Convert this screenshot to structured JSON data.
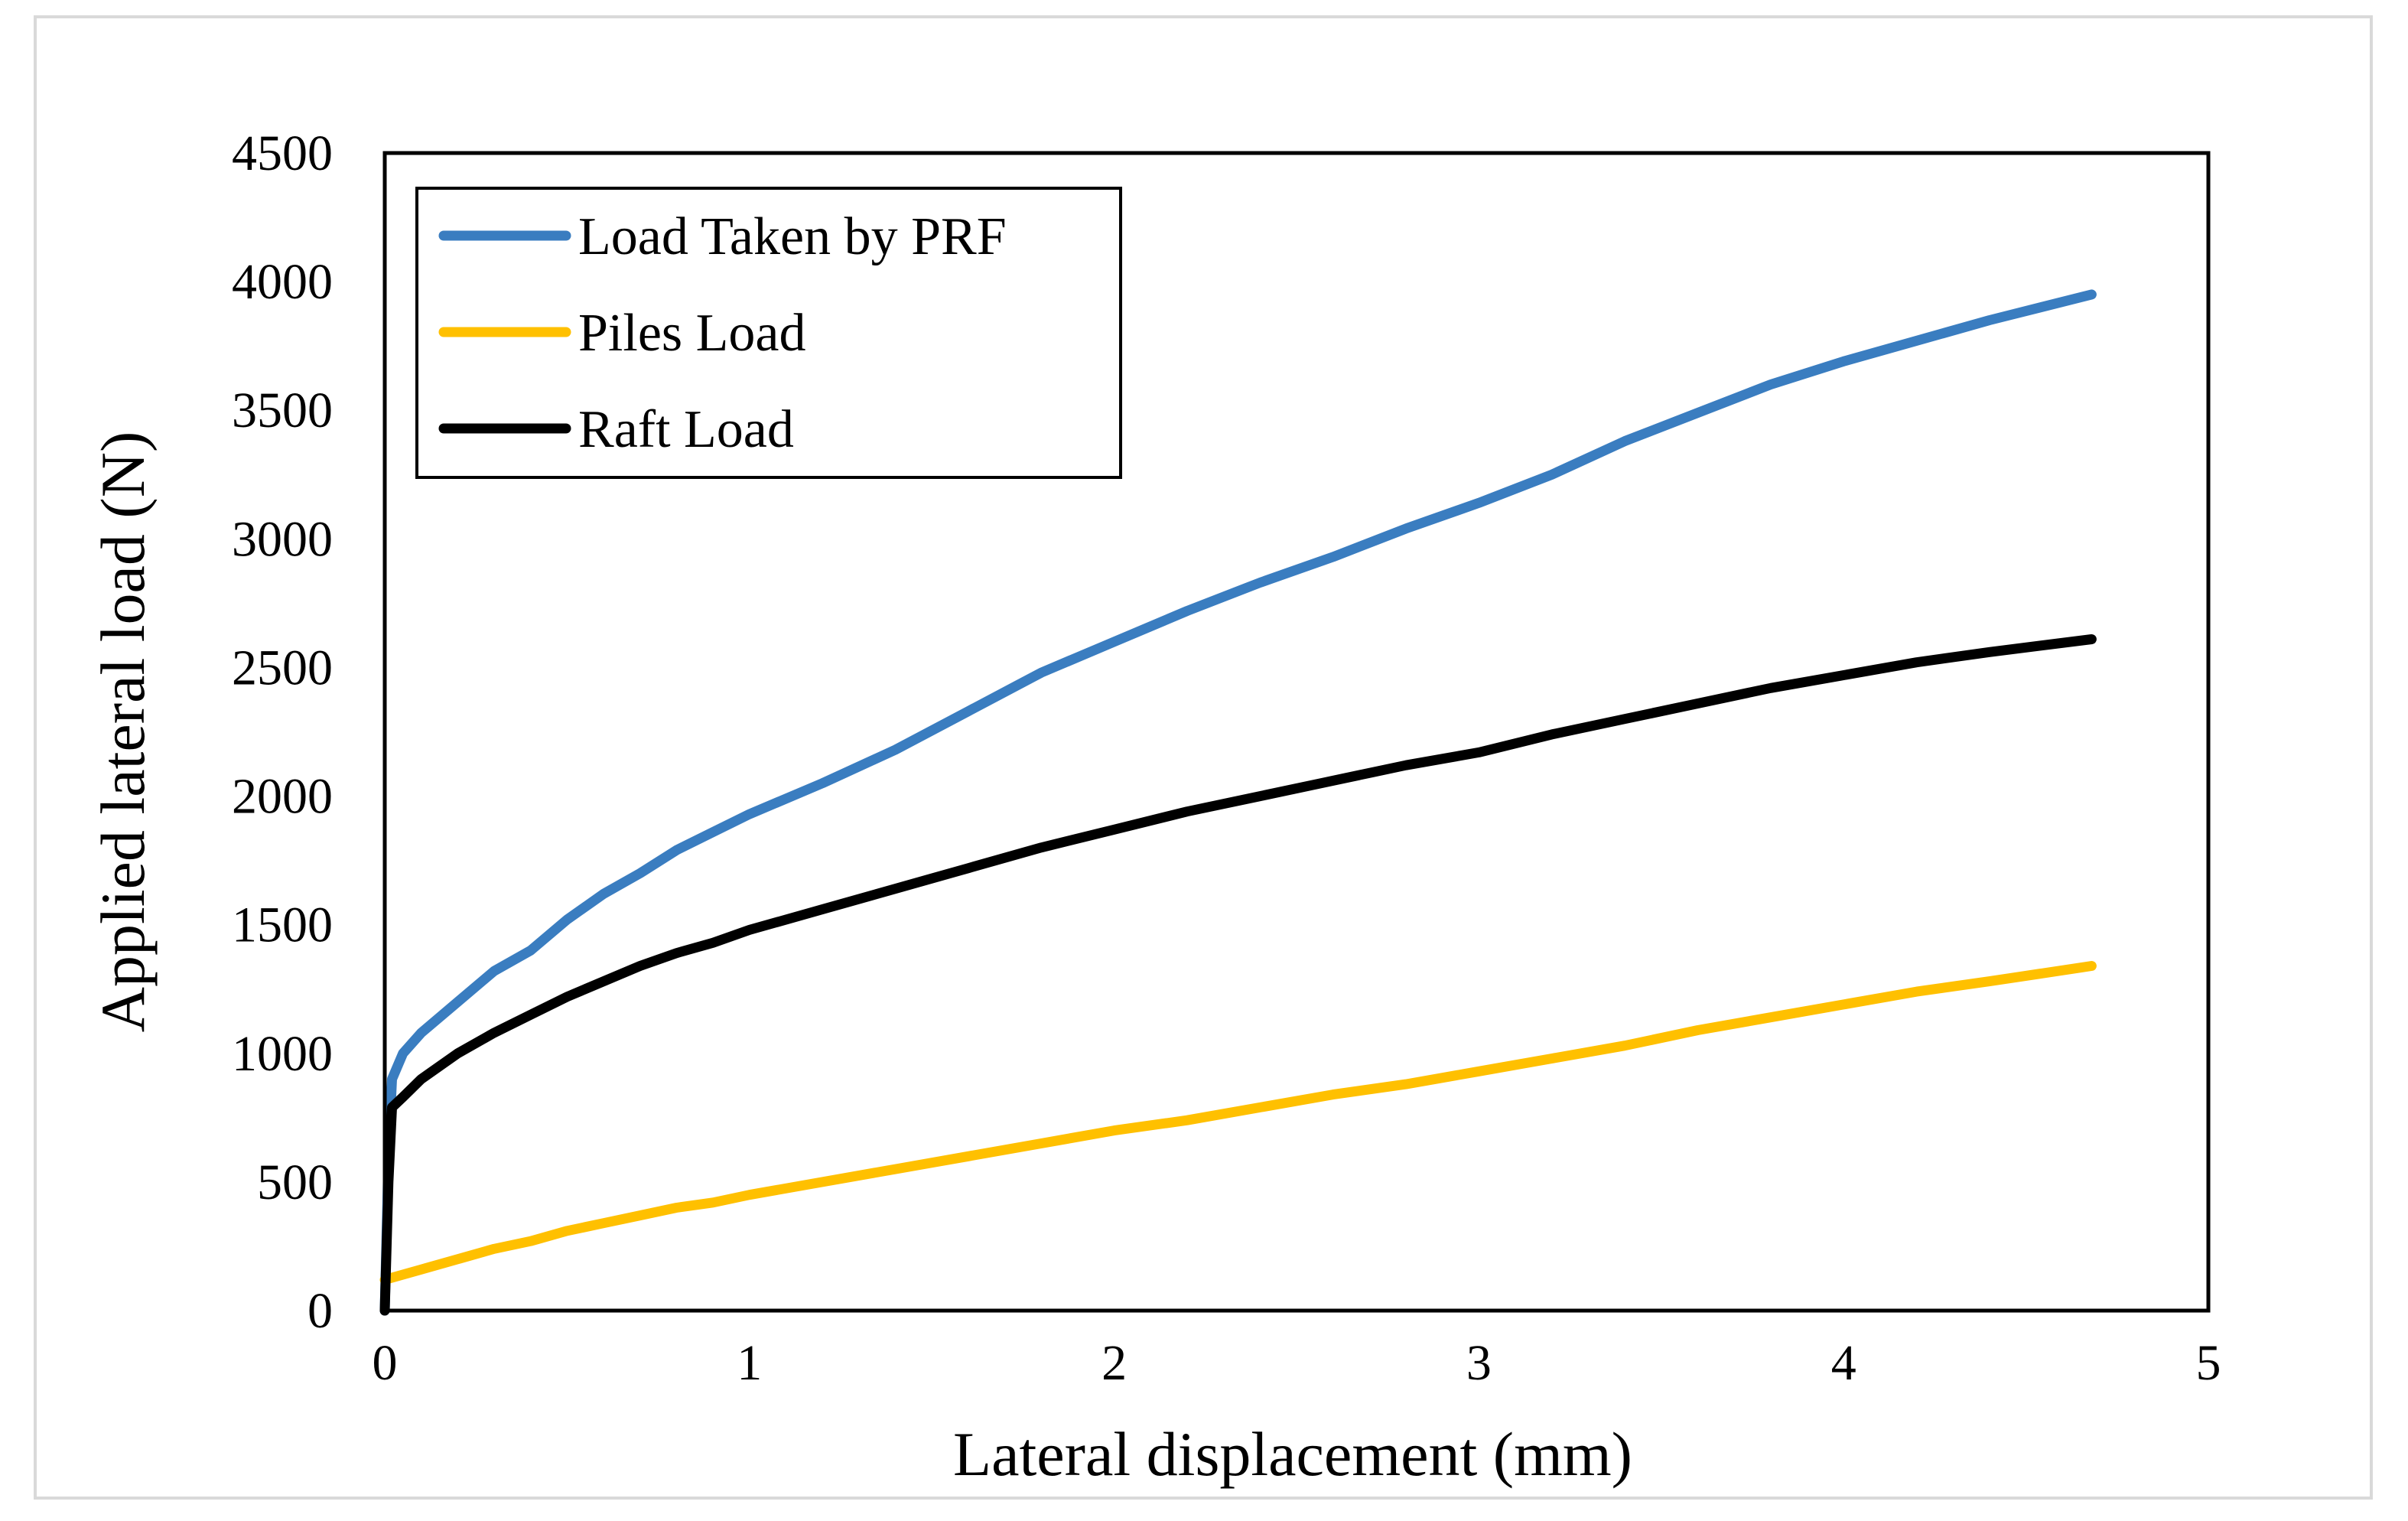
{
  "chart_data": {
    "type": "line",
    "title": "",
    "xlabel": "Lateral displacement (mm)",
    "ylabel": "Applied lateral load (N)",
    "xlim": [
      0,
      5
    ],
    "ylim": [
      0,
      4500
    ],
    "xticks": [
      0,
      1,
      2,
      3,
      4,
      5
    ],
    "yticks": [
      0,
      500,
      1000,
      1500,
      2000,
      2500,
      3000,
      3500,
      4000,
      4500
    ],
    "grid": false,
    "legend_position": "top-left",
    "series": [
      {
        "name": "Load Taken by PRF",
        "color": "#3a7dc0",
        "points": [
          [
            0,
            0
          ],
          [
            0.01,
            600
          ],
          [
            0.02,
            900
          ],
          [
            0.05,
            1000
          ],
          [
            0.1,
            1080
          ],
          [
            0.2,
            1200
          ],
          [
            0.3,
            1320
          ],
          [
            0.4,
            1400
          ],
          [
            0.5,
            1520
          ],
          [
            0.6,
            1620
          ],
          [
            0.7,
            1700
          ],
          [
            0.8,
            1790
          ],
          [
            0.9,
            1860
          ],
          [
            1.0,
            1930
          ],
          [
            1.2,
            2050
          ],
          [
            1.4,
            2180
          ],
          [
            1.6,
            2330
          ],
          [
            1.8,
            2480
          ],
          [
            2.0,
            2600
          ],
          [
            2.2,
            2720
          ],
          [
            2.4,
            2830
          ],
          [
            2.6,
            2930
          ],
          [
            2.8,
            3040
          ],
          [
            3.0,
            3140
          ],
          [
            3.2,
            3250
          ],
          [
            3.4,
            3380
          ],
          [
            3.6,
            3490
          ],
          [
            3.8,
            3600
          ],
          [
            4.0,
            3690
          ],
          [
            4.2,
            3770
          ],
          [
            4.4,
            3850
          ],
          [
            4.68,
            3950
          ]
        ]
      },
      {
        "name": "Piles Load",
        "color": "#ffc000",
        "points": [
          [
            0,
            120
          ],
          [
            0.1,
            160
          ],
          [
            0.2,
            200
          ],
          [
            0.3,
            240
          ],
          [
            0.4,
            270
          ],
          [
            0.5,
            310
          ],
          [
            0.6,
            340
          ],
          [
            0.7,
            370
          ],
          [
            0.8,
            400
          ],
          [
            0.9,
            420
          ],
          [
            1.0,
            450
          ],
          [
            1.2,
            500
          ],
          [
            1.4,
            550
          ],
          [
            1.6,
            600
          ],
          [
            1.8,
            650
          ],
          [
            2.0,
            700
          ],
          [
            2.2,
            740
          ],
          [
            2.4,
            790
          ],
          [
            2.6,
            840
          ],
          [
            2.8,
            880
          ],
          [
            3.0,
            930
          ],
          [
            3.2,
            980
          ],
          [
            3.4,
            1030
          ],
          [
            3.6,
            1090
          ],
          [
            3.8,
            1140
          ],
          [
            4.0,
            1190
          ],
          [
            4.2,
            1240
          ],
          [
            4.4,
            1280
          ],
          [
            4.68,
            1340
          ]
        ]
      },
      {
        "name": "Raft Load",
        "color": "#000000",
        "points": [
          [
            0,
            0
          ],
          [
            0.01,
            500
          ],
          [
            0.02,
            790
          ],
          [
            0.05,
            830
          ],
          [
            0.1,
            900
          ],
          [
            0.2,
            1000
          ],
          [
            0.3,
            1080
          ],
          [
            0.4,
            1150
          ],
          [
            0.5,
            1220
          ],
          [
            0.6,
            1280
          ],
          [
            0.7,
            1340
          ],
          [
            0.8,
            1390
          ],
          [
            0.9,
            1430
          ],
          [
            1.0,
            1480
          ],
          [
            1.2,
            1560
          ],
          [
            1.4,
            1640
          ],
          [
            1.6,
            1720
          ],
          [
            1.8,
            1800
          ],
          [
            2.0,
            1870
          ],
          [
            2.2,
            1940
          ],
          [
            2.4,
            2000
          ],
          [
            2.6,
            2060
          ],
          [
            2.8,
            2120
          ],
          [
            3.0,
            2170
          ],
          [
            3.2,
            2240
          ],
          [
            3.4,
            2300
          ],
          [
            3.6,
            2360
          ],
          [
            3.8,
            2420
          ],
          [
            4.0,
            2470
          ],
          [
            4.2,
            2520
          ],
          [
            4.4,
            2560
          ],
          [
            4.68,
            2610
          ]
        ]
      }
    ]
  }
}
